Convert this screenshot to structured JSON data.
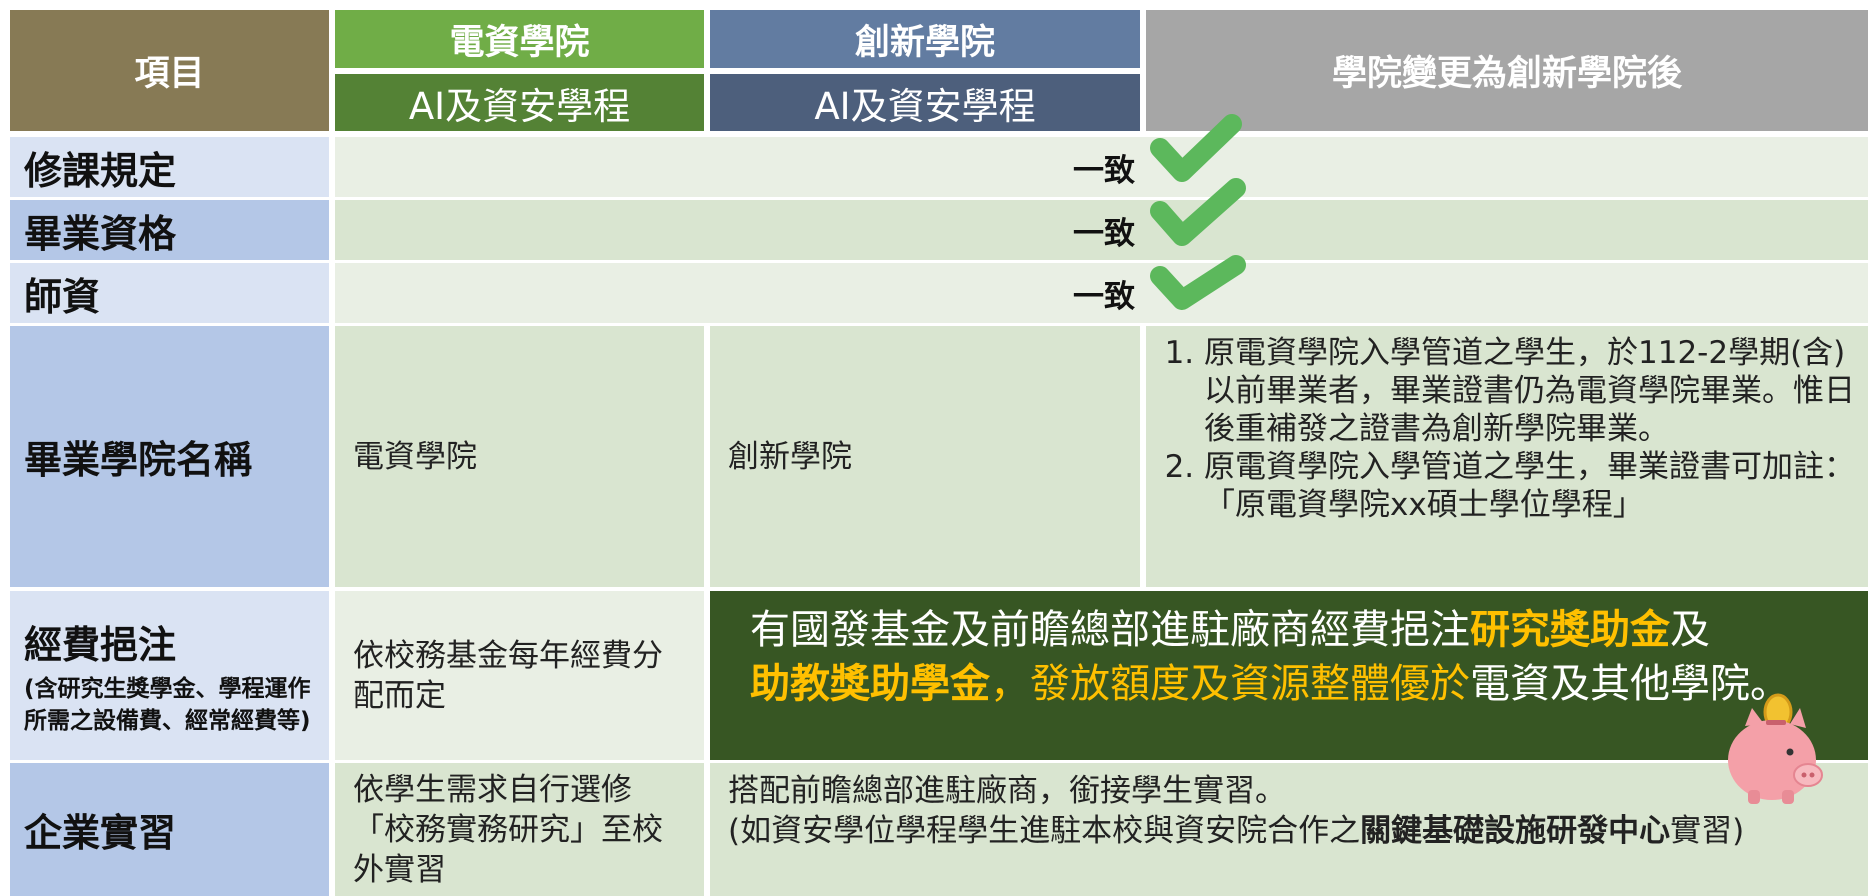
{
  "header": {
    "item": "項目",
    "col1_school": "電資學院",
    "col1_program": "AI及資安學程",
    "col2_school": "創新學院",
    "col2_program": "AI及資安學程",
    "col3": "學院變更為創新學院後"
  },
  "rows": [
    {
      "label": "修課規定",
      "merged": "一致"
    },
    {
      "label": "畢業資格",
      "merged": "一致"
    },
    {
      "label": "師資",
      "merged": "一致"
    },
    {
      "label": "畢業學院名稱",
      "col1": "電資學院",
      "col2": "創新學院",
      "col3": [
        "原電資學院入學管道之學生，於112-2學期(含)以前畢業者，畢業證書仍為電資學院畢業。惟日後重補發之證書為創新學院畢業。",
        "原電資學院入學管道之學生，畢業證書可加註：「原電資學院xx碩士學位學程」"
      ]
    },
    {
      "label": "經費挹注",
      "sublabel": "(含研究生獎學金、學程運作所需之設備費、經常經費等)",
      "col1": "依校務基金每年經費分配而定",
      "merged": [
        "有國發基金及前瞻總部進駐廠商經費挹注",
        "研究獎助金",
        "及",
        "助教獎助學金",
        "，發放額度及資源整體優於",
        "電資及其他學院。"
      ]
    },
    {
      "label": "企業實習",
      "col1": "依學生需求自行選修「校務實務研究」至校外實習",
      "merged": [
        "搭配前瞻總部進駐廠商，銜接學生實習。",
        "(如資安學位學程學生進駐本校與資安院合作之",
        "關鍵基礎設施研發中心",
        "實習)"
      ]
    }
  ]
}
